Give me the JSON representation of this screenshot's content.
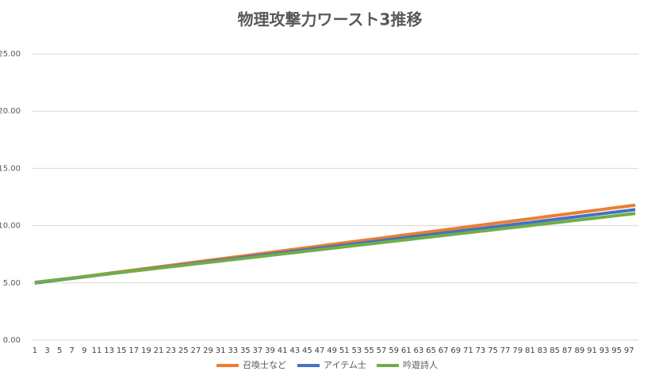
{
  "chart_data": {
    "type": "line",
    "title": "物理攻撃力ワースト3推移",
    "categories": [
      1,
      null,
      3,
      null,
      5,
      null,
      7,
      null,
      9,
      null,
      11,
      null,
      13,
      null,
      15,
      null,
      17,
      null,
      19,
      null,
      21,
      null,
      23,
      null,
      25,
      null,
      27,
      null,
      29,
      null,
      31,
      null,
      33,
      null,
      35,
      null,
      37,
      null,
      39,
      null,
      41,
      null,
      43,
      null,
      45,
      null,
      47,
      null,
      49,
      null,
      51,
      null,
      53,
      null,
      55,
      null,
      57,
      null,
      59,
      null,
      61,
      null,
      63,
      null,
      65,
      null,
      67,
      null,
      69,
      null,
      71,
      null,
      73,
      null,
      75,
      null,
      77,
      null,
      79,
      null,
      81,
      null,
      83,
      null,
      85,
      null,
      87,
      null,
      89,
      null,
      91,
      null,
      93,
      null,
      95,
      null,
      97,
      null
    ],
    "series": [
      {
        "name": "召喚士など",
        "color": "#ed7d31",
        "values": [
          5.0,
          5.07,
          5.14,
          5.21,
          5.28,
          5.35,
          5.42,
          5.49,
          5.56,
          5.63,
          5.7,
          5.77,
          5.84,
          5.91,
          5.98,
          6.05,
          6.12,
          6.19,
          6.26,
          6.33,
          6.4,
          6.47,
          6.54,
          6.61,
          6.68,
          6.75,
          6.82,
          6.89,
          6.96,
          7.03,
          7.1,
          7.17,
          7.24,
          7.31,
          7.38,
          7.45,
          7.52,
          7.59,
          7.66,
          7.73,
          7.8,
          7.87,
          7.94,
          8.01,
          8.08,
          8.15,
          8.22,
          8.29,
          8.36,
          8.43,
          8.5,
          8.57,
          8.64,
          8.71,
          8.78,
          8.85,
          8.92,
          8.99,
          9.06,
          9.13,
          9.2,
          9.27,
          9.34,
          9.41,
          9.48,
          9.55,
          9.62,
          9.69,
          9.76,
          9.83,
          9.9,
          9.97,
          10.04,
          10.11,
          10.18,
          10.25,
          10.32,
          10.39,
          10.46,
          10.53,
          10.6,
          10.67,
          10.74,
          10.81,
          10.88,
          10.95,
          11.02,
          11.09,
          11.16,
          11.23,
          11.3,
          11.37,
          11.44,
          11.51,
          11.58,
          11.65,
          11.72,
          11.79
        ]
      },
      {
        "name": "アイテム士",
        "color": "#4472c4",
        "values": [
          5,
          5.066,
          5.132,
          5.198,
          5.264,
          5.33,
          5.396,
          5.462,
          5.528,
          5.594,
          5.66,
          5.726,
          5.792,
          5.858,
          5.924,
          5.99,
          6.056,
          6.122,
          6.188,
          6.254,
          6.32,
          6.386,
          6.452,
          6.518,
          6.584,
          6.65,
          6.716,
          6.782,
          6.848,
          6.914,
          6.98,
          7.046,
          7.112,
          7.178,
          7.244,
          7.31,
          7.376,
          7.442,
          7.508,
          7.574,
          7.64,
          7.706,
          7.772,
          7.838,
          7.904,
          7.97,
          8.036,
          8.102,
          8.168,
          8.234,
          8.3,
          8.366,
          8.432,
          8.498,
          8.564,
          8.63,
          8.696,
          8.762,
          8.828,
          8.894,
          8.96,
          9.026,
          9.092,
          9.158,
          9.224,
          9.29,
          9.356,
          9.422,
          9.488,
          9.554,
          9.62,
          9.686,
          9.752,
          9.818,
          9.884,
          9.95,
          10.016,
          10.082,
          10.148,
          10.214,
          10.28,
          10.346,
          10.412,
          10.478,
          10.544,
          10.61,
          10.676,
          10.742,
          10.808,
          10.874,
          10.94,
          11.006,
          11.072,
          11.138,
          11.204,
          11.27,
          11.336,
          11.402
        ]
      },
      {
        "name": "吟遊詩人",
        "color": "#70ad47",
        "values": [
          5.05,
          5.112,
          5.174,
          5.236,
          5.298,
          5.36,
          5.422,
          5.484,
          5.546,
          5.608,
          5.67,
          5.732,
          5.794,
          5.856,
          5.918,
          5.98,
          6.042,
          6.104,
          6.166,
          6.228,
          6.29,
          6.352,
          6.414,
          6.476,
          6.538,
          6.6,
          6.662,
          6.724,
          6.786,
          6.848,
          6.91,
          6.972,
          7.034,
          7.096,
          7.158,
          7.22,
          7.282,
          7.344,
          7.406,
          7.468,
          7.53,
          7.592,
          7.654,
          7.716,
          7.778,
          7.84,
          7.902,
          7.964,
          8.026,
          8.088,
          8.15,
          8.212,
          8.274,
          8.336,
          8.398,
          8.46,
          8.522,
          8.584,
          8.646,
          8.708,
          8.77,
          8.832,
          8.894,
          8.956,
          9.018,
          9.08,
          9.142,
          9.204,
          9.266,
          9.328,
          9.39,
          9.452,
          9.514,
          9.576,
          9.638,
          9.7,
          9.762,
          9.824,
          9.886,
          9.948,
          10.01,
          10.072,
          10.134,
          10.196,
          10.258,
          10.32,
          10.382,
          10.444,
          10.506,
          10.568,
          10.63,
          10.692,
          10.754,
          10.816,
          10.878,
          10.94,
          11.002,
          11.064
        ]
      }
    ],
    "ylim": [
      0,
      25
    ],
    "yticks": [
      {
        "value": 0,
        "label": "0.00"
      },
      {
        "value": 5,
        "label": "5.00"
      },
      {
        "value": 10,
        "label": "10.00"
      },
      {
        "value": 15,
        "label": "15.00"
      },
      {
        "value": 20,
        "label": "20.00"
      },
      {
        "value": 25,
        "label": "25.00"
      }
    ],
    "grid": true,
    "legend": "bottom"
  }
}
